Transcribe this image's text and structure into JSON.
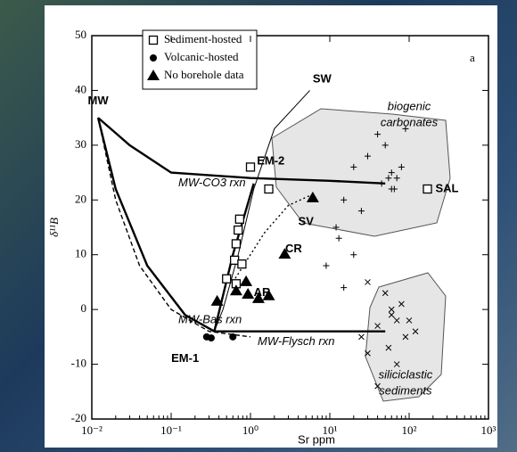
{
  "chart_data": {
    "type": "scatter",
    "panel_label": "a",
    "x_label": "Sr ppm",
    "y_label": "δ¹¹B",
    "log_x": true,
    "xlim": [
      0.01,
      1000
    ],
    "ylim": [
      -20,
      50
    ],
    "xticks": [
      {
        "value": 0.01,
        "label": "10⁻²"
      },
      {
        "value": 0.1,
        "label": "10⁻¹"
      },
      {
        "value": 1,
        "label": "10⁰"
      },
      {
        "value": 10,
        "label": "10¹"
      },
      {
        "value": 100,
        "label": "10²"
      },
      {
        "value": 1000,
        "label": "10³"
      }
    ],
    "yticks": [
      -20,
      -10,
      0,
      10,
      20,
      30,
      40,
      50
    ],
    "series": [
      {
        "name": "Sediment-hosted",
        "marker": "square",
        "color": "#000000",
        "x": [
          1,
          1.7,
          0.73,
          0.7,
          0.66,
          0.63,
          0.78,
          0.5,
          0.66,
          170
        ],
        "values": [
          26,
          22,
          16.5,
          14.5,
          12,
          9,
          8.3,
          5.6,
          4.7,
          22
        ]
      },
      {
        "name": "Volcanic-hosted",
        "marker": "circle",
        "color": "#000000",
        "x": [
          0.28,
          0.32,
          0.6
        ],
        "values": [
          -5,
          -5.2,
          -5
        ]
      },
      {
        "name": "No borehole data",
        "marker": "triangle",
        "color": "#000000",
        "x": [
          6.1,
          2.7,
          0.88,
          0.66,
          0.93,
          0.38,
          1.26,
          1.7
        ],
        "values": [
          20.4,
          10.1,
          5.1,
          3.4,
          2.8,
          1.5,
          2,
          2.5
        ]
      }
    ],
    "other_points": [
      {
        "marker": "cross",
        "color": "#000000",
        "x": [
          30,
          40,
          50,
          60,
          70,
          80,
          60,
          45,
          20,
          15,
          12,
          25,
          90,
          55,
          65,
          13,
          20,
          9,
          15
        ],
        "values": [
          28,
          32,
          30,
          25,
          24,
          26,
          22,
          23,
          26,
          20,
          15,
          18,
          33,
          24,
          22,
          13,
          10,
          8,
          4
        ]
      },
      {
        "marker": "x",
        "color": "#000000",
        "x": [
          30,
          50,
          60,
          70,
          80,
          40,
          90,
          55,
          30,
          25,
          100,
          120,
          70,
          40,
          60
        ],
        "values": [
          5,
          3,
          0,
          -2,
          1,
          -3,
          -5,
          -7,
          -8,
          -5,
          -2,
          -4,
          -10,
          -14,
          -1
        ]
      }
    ],
    "curves": [
      {
        "label": "MW-CO3 rxn",
        "style": "thick",
        "x": [
          0.012,
          0.03,
          0.1,
          1,
          10,
          50
        ],
        "values": [
          35,
          30,
          25,
          24,
          23.5,
          23
        ]
      },
      {
        "style": "thin",
        "x": [
          5.6,
          2,
          1.1,
          0.7,
          0.45,
          0.35
        ],
        "values": [
          40,
          33,
          22,
          10,
          0,
          -4
        ]
      },
      {
        "label": "MW-Bas rxn",
        "style": "dashed",
        "x": [
          0.012,
          0.02,
          0.04,
          0.1,
          0.3,
          1
        ],
        "values": [
          35,
          20,
          8,
          0,
          -4,
          -5
        ]
      },
      {
        "style": "thick",
        "x": [
          0.35,
          0.6,
          1.1
        ],
        "values": [
          -4,
          10,
          23
        ]
      },
      {
        "style": "thick",
        "x": [
          0.012,
          0.02,
          0.05,
          0.15,
          0.35
        ],
        "values": [
          35,
          22,
          8,
          -1,
          -4
        ]
      },
      {
        "label": "MW-Flysch rxn",
        "style": "thick",
        "x": [
          0.35,
          1,
          10,
          50
        ],
        "values": [
          -4,
          -4,
          -4,
          -4
        ]
      },
      {
        "style": "dotted",
        "x": [
          0.6,
          1.5,
          3,
          6
        ],
        "values": [
          5,
          14,
          19,
          21
        ]
      }
    ],
    "annotations": [
      {
        "text": "MW",
        "x": 0.012,
        "y": 38
      },
      {
        "text": "SW",
        "x": 8,
        "y": 42
      },
      {
        "text": "EM-2",
        "x": 1.8,
        "y": 27
      },
      {
        "text": "EM-1",
        "x": 0.15,
        "y": -9
      },
      {
        "text": "SV",
        "x": 5,
        "y": 16
      },
      {
        "text": "CR",
        "x": 3.5,
        "y": 11
      },
      {
        "text": "AR",
        "x": 1.4,
        "y": 3
      },
      {
        "text": "SAL",
        "x": 300,
        "y": 22
      },
      {
        "text": "biogenic",
        "x": 100,
        "y": 37
      },
      {
        "text": "carbonates",
        "x": 100,
        "y": 34
      },
      {
        "text": "siliciclastic",
        "x": 90,
        "y": -12
      },
      {
        "text": "sediments",
        "x": 90,
        "y": -15
      }
    ]
  }
}
